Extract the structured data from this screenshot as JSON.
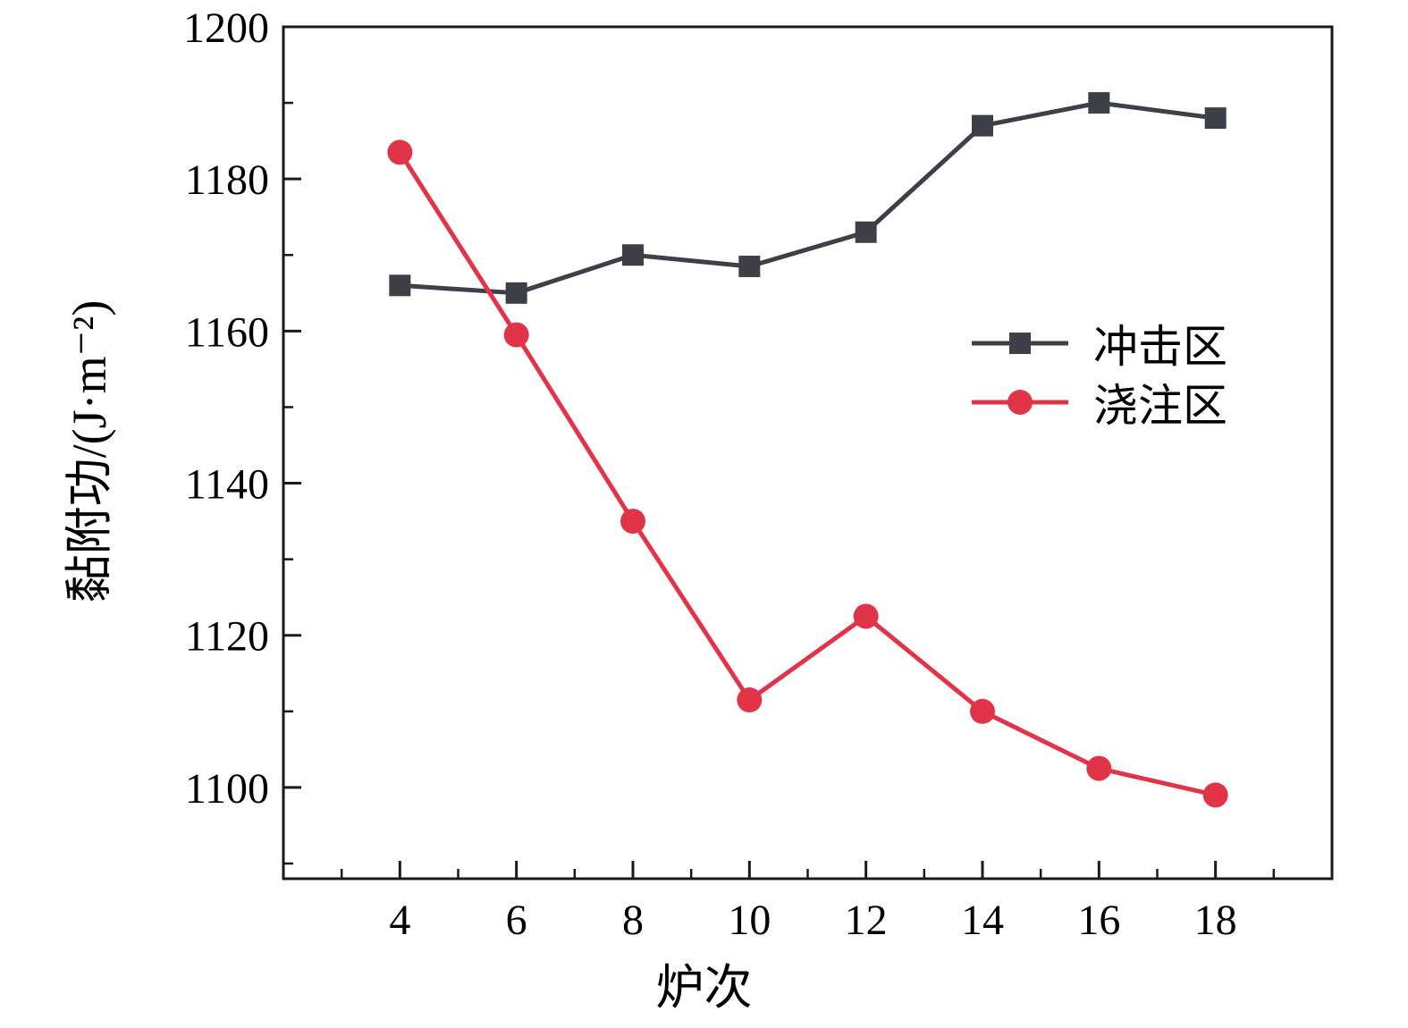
{
  "chart_data": {
    "type": "line",
    "title": "",
    "xlabel": "炉次",
    "ylabel": "黏附功/(J·m⁻²)",
    "x": [
      4,
      6,
      8,
      10,
      12,
      14,
      16,
      18
    ],
    "series": [
      {
        "name": "冲击区",
        "marker": "square",
        "color": "#3f3f48",
        "values": [
          1166,
          1165,
          1170,
          1168.5,
          1173,
          1187,
          1190,
          1188
        ]
      },
      {
        "name": "浇注区",
        "marker": "circle",
        "color": "#e23448",
        "values": [
          1183.5,
          1159.5,
          1135,
          1111.5,
          1122.5,
          1110,
          1102.5,
          1099
        ]
      }
    ],
    "xlim": [
      2,
      20
    ],
    "ylim": [
      1088,
      1200
    ],
    "xticks": [
      4,
      6,
      8,
      10,
      12,
      14,
      16,
      18
    ],
    "yticks": [
      1100,
      1120,
      1140,
      1160,
      1180,
      1200
    ],
    "xminor": [
      3,
      5,
      7,
      9,
      11,
      13,
      15,
      17,
      19
    ],
    "yminor": [
      1090,
      1110,
      1130,
      1150,
      1170,
      1190
    ],
    "grid": false,
    "legend_position": "right-center",
    "axis_color": "#1a1a1a"
  }
}
